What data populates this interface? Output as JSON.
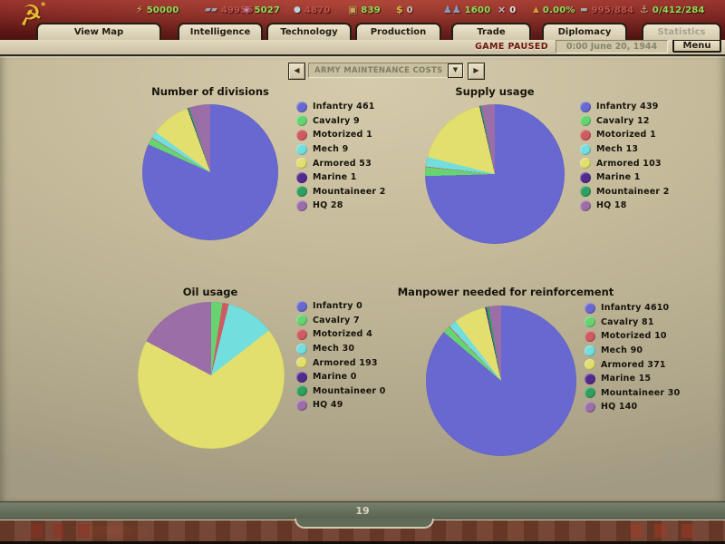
{
  "topbar": {
    "emblem_icon": "hammer-sickle",
    "emblem_glyph": "☭",
    "resources": [
      {
        "name": "energy",
        "glyph": "⚡",
        "value": "50000",
        "status": "positive"
      },
      {
        "name": "metal",
        "glyph": "▰▰",
        "value": "49955",
        "status": "negative"
      },
      {
        "name": "rare-materials",
        "glyph": "◈",
        "value": "5027",
        "status": "positive"
      },
      {
        "name": "oil",
        "glyph": "●",
        "value": "4870",
        "status": "negative"
      },
      {
        "name": "supplies",
        "glyph": "▣",
        "value": "839",
        "status": "positive"
      },
      {
        "name": "money",
        "glyph": "$",
        "value": "0",
        "status": "neutral"
      },
      {
        "name": "manpower",
        "glyph": "♟♟",
        "value": "1600",
        "status": "positive"
      },
      {
        "name": "transports",
        "glyph": "×",
        "value": "0",
        "status": "white"
      },
      {
        "name": "dissent",
        "glyph": "▲",
        "value": "0.00%",
        "status": "positive"
      },
      {
        "name": "convoys",
        "glyph": "▬",
        "value": "995/884",
        "status": "negative"
      },
      {
        "name": "escorts",
        "glyph": "⚓",
        "value": "0/412/284",
        "status": "positive"
      }
    ],
    "tabs": [
      {
        "label": "View Map",
        "disabled": false
      },
      {
        "label": "Intelligence",
        "disabled": false
      },
      {
        "label": "Technology",
        "disabled": false
      },
      {
        "label": "Production",
        "disabled": false
      },
      {
        "label": "Trade",
        "disabled": false
      },
      {
        "label": "Diplomacy",
        "disabled": false
      },
      {
        "label": "Statistics",
        "disabled": true
      }
    ],
    "game_paused": "GAME PAUSED",
    "date": "0:00 June 20, 1944",
    "menu_label": "Menu"
  },
  "selector": {
    "value": "ARMY MAINTENANCE COSTS",
    "prev_icon": "◀",
    "next_icon": "▶",
    "dropdown_icon": "▼"
  },
  "palette": [
    "#6868d0",
    "#66d470",
    "#d05a62",
    "#72dede",
    "#e2df6e",
    "#532a8e",
    "#2fa05f",
    "#9c6ea8"
  ],
  "chart_data": [
    {
      "type": "pie",
      "title": "Number of divisions",
      "legend_position": "right",
      "categories": [
        "Infantry",
        "Cavalry",
        "Motorized",
        "Mech",
        "Armored",
        "Marine",
        "Mountaineer",
        "HQ"
      ],
      "values": [
        461,
        9,
        1,
        9,
        53,
        1,
        2,
        28
      ]
    },
    {
      "type": "pie",
      "title": "Supply usage",
      "legend_position": "right",
      "categories": [
        "Infantry",
        "Cavalry",
        "Motorized",
        "Mech",
        "Armored",
        "Marine",
        "Mountaineer",
        "HQ"
      ],
      "values": [
        439,
        12,
        1,
        13,
        103,
        1,
        2,
        18
      ]
    },
    {
      "type": "pie",
      "title": "Oil usage",
      "legend_position": "right",
      "categories": [
        "Infantry",
        "Cavalry",
        "Motorized",
        "Mech",
        "Armored",
        "Marine",
        "Mountaineer",
        "HQ"
      ],
      "values": [
        0,
        7,
        4,
        30,
        193,
        0,
        0,
        49
      ]
    },
    {
      "type": "pie",
      "title": "Manpower needed for reinforcement",
      "legend_position": "right",
      "categories": [
        "Infantry",
        "Cavalry",
        "Motorized",
        "Mech",
        "Armored",
        "Marine",
        "Mountaineer",
        "HQ"
      ],
      "values": [
        4610,
        81,
        10,
        90,
        371,
        15,
        30,
        140
      ]
    }
  ],
  "footer": {
    "page_number": "19"
  },
  "colors": {
    "positive_value": "#8edd55",
    "negative_value": "#c5524e",
    "neutral_value": "#cfc6b2",
    "topbar_red": "#7c2421",
    "panel_beige": "#d2c9ad",
    "content_olive": "#c4ba9a"
  }
}
